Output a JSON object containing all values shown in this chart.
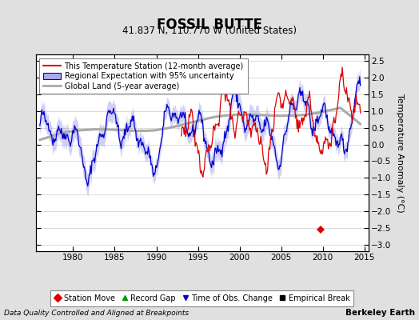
{
  "title": "FOSSIL BUTTE",
  "subtitle": "41.837 N, 110.770 W (United States)",
  "ylabel": "Temperature Anomaly (°C)",
  "xlabel_left": "Data Quality Controlled and Aligned at Breakpoints",
  "xlabel_right": "Berkeley Earth",
  "ylim": [
    -3.2,
    2.7
  ],
  "xlim": [
    1975.5,
    2015.5
  ],
  "yticks": [
    -3,
    -2.5,
    -2,
    -1.5,
    -1,
    -0.5,
    0,
    0.5,
    1,
    1.5,
    2,
    2.5
  ],
  "xticks": [
    1980,
    1985,
    1990,
    1995,
    2000,
    2005,
    2010,
    2015
  ],
  "station_move_year": 2009.7,
  "station_move_value": -2.55,
  "bg_color": "#e0e0e0",
  "plot_bg_color": "#ffffff",
  "red_color": "#dd0000",
  "blue_color": "#0000cc",
  "band_color": "#aaaaee",
  "gray_color": "#aaaaaa",
  "grid_color": "#cccccc",
  "legend_items": [
    {
      "label": "This Temperature Station (12-month average)",
      "color": "#dd0000",
      "lw": 1.5
    },
    {
      "label": "Regional Expectation with 95% uncertainty",
      "color": "#0000cc",
      "lw": 1.5
    },
    {
      "label": "Global Land (5-year average)",
      "color": "#aaaaaa",
      "lw": 2.0
    }
  ],
  "marker_items": [
    {
      "label": "Station Move",
      "color": "#dd0000",
      "marker": "D"
    },
    {
      "label": "Record Gap",
      "color": "#009900",
      "marker": "^"
    },
    {
      "label": "Time of Obs. Change",
      "color": "#0000cc",
      "marker": "v"
    },
    {
      "label": "Empirical Break",
      "color": "#000000",
      "marker": "s"
    }
  ],
  "seed": 42
}
